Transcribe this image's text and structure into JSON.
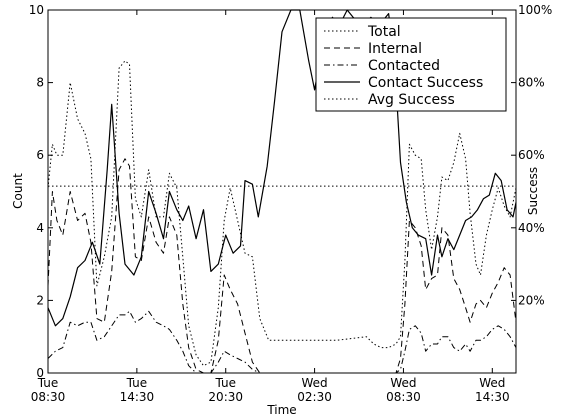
{
  "chart_data": {
    "type": "line",
    "xlabel": "Time",
    "ylabel_left": "Count",
    "ylabel_right": "Success",
    "ylim_left": [
      0,
      10
    ],
    "ylim_right": [
      0,
      100
    ],
    "xlim": [
      0,
      31.6
    ],
    "x_unit_note": "hours after Tue 08:30",
    "x_ticks": [
      {
        "x": 0,
        "line1": "Tue",
        "line2": "08:30"
      },
      {
        "x": 6,
        "line1": "Tue",
        "line2": "14:30"
      },
      {
        "x": 12,
        "line1": "Tue",
        "line2": "20:30"
      },
      {
        "x": 18,
        "line1": "Wed",
        "line2": "02:30"
      },
      {
        "x": 24,
        "line1": "Wed",
        "line2": "08:30"
      },
      {
        "x": 30,
        "line1": "Wed",
        "line2": "14:30"
      }
    ],
    "left_ticks": [
      "0",
      "2",
      "4",
      "6",
      "8",
      "10"
    ],
    "left_tick_values": [
      0,
      2,
      4,
      6,
      8,
      10
    ],
    "right_ticks": [
      "20%",
      "40%",
      "60%",
      "80%",
      "100%"
    ],
    "right_tick_values": [
      20,
      40,
      60,
      80,
      100
    ],
    "legend_position": "top-right",
    "legend": [
      {
        "name": "Total",
        "style": "dotted"
      },
      {
        "name": "Internal",
        "style": "dashed"
      },
      {
        "name": "Contacted",
        "style": "dashdot"
      },
      {
        "name": "Contact Success",
        "style": "solid"
      },
      {
        "name": "Avg Success",
        "style": "dotted"
      }
    ],
    "series": [
      {
        "name": "Total",
        "axis": "left",
        "style": "dotted",
        "points": [
          [
            0,
            5.1
          ],
          [
            0.3,
            6.3
          ],
          [
            0.6,
            6.0
          ],
          [
            1.0,
            6.0
          ],
          [
            1.5,
            8.0
          ],
          [
            2.0,
            7.0
          ],
          [
            2.5,
            6.6
          ],
          [
            2.9,
            5.9
          ],
          [
            3.3,
            2.4
          ],
          [
            3.8,
            3.2
          ],
          [
            4.3,
            4.3
          ],
          [
            4.8,
            8.4
          ],
          [
            5.2,
            8.6
          ],
          [
            5.5,
            8.5
          ],
          [
            5.9,
            4.8
          ],
          [
            6.3,
            4.3
          ],
          [
            6.8,
            5.6
          ],
          [
            7.3,
            4.3
          ],
          [
            7.8,
            4.3
          ],
          [
            8.2,
            5.5
          ],
          [
            8.7,
            5.1
          ],
          [
            9.1,
            3.2
          ],
          [
            9.5,
            1.3
          ],
          [
            10.0,
            0.5
          ],
          [
            10.5,
            0.2
          ],
          [
            11.0,
            0.3
          ],
          [
            11.5,
            1.8
          ],
          [
            11.9,
            4.2
          ],
          [
            12.3,
            5.1
          ],
          [
            12.8,
            4.2
          ],
          [
            13.3,
            3.3
          ],
          [
            13.8,
            3.2
          ],
          [
            14.3,
            1.5
          ],
          [
            14.9,
            0.9
          ],
          [
            15.5,
            0.9
          ],
          [
            16.5,
            0.9
          ],
          [
            17.5,
            0.9
          ],
          [
            18.5,
            0.9
          ],
          [
            19.5,
            0.9
          ],
          [
            20.5,
            0.95
          ],
          [
            21.5,
            1.0
          ],
          [
            22.0,
            0.8
          ],
          [
            22.5,
            0.7
          ],
          [
            23.0,
            0.7
          ],
          [
            23.5,
            0.8
          ],
          [
            23.8,
            1.0
          ],
          [
            24.1,
            3.1
          ],
          [
            24.4,
            6.3
          ],
          [
            24.8,
            6.0
          ],
          [
            25.2,
            5.9
          ],
          [
            25.5,
            4.5
          ],
          [
            25.9,
            3.4
          ],
          [
            26.3,
            4.3
          ],
          [
            26.6,
            5.4
          ],
          [
            27.0,
            5.3
          ],
          [
            27.4,
            5.8
          ],
          [
            27.8,
            6.6
          ],
          [
            28.2,
            5.9
          ],
          [
            28.5,
            4.4
          ],
          [
            28.9,
            3.0
          ],
          [
            29.2,
            2.7
          ],
          [
            29.6,
            3.8
          ],
          [
            30.0,
            4.5
          ],
          [
            30.4,
            5.1
          ],
          [
            30.8,
            4.6
          ],
          [
            31.2,
            4.3
          ],
          [
            31.6,
            5.1
          ]
        ]
      },
      {
        "name": "Internal",
        "axis": "left",
        "style": "dashed",
        "points": [
          [
            0,
            2.4
          ],
          [
            0.3,
            5.0
          ],
          [
            0.6,
            4.2
          ],
          [
            1.0,
            3.8
          ],
          [
            1.5,
            5.0
          ],
          [
            2.0,
            4.2
          ],
          [
            2.5,
            4.4
          ],
          [
            2.9,
            3.6
          ],
          [
            3.3,
            1.5
          ],
          [
            3.8,
            1.4
          ],
          [
            4.3,
            2.8
          ],
          [
            4.8,
            5.6
          ],
          [
            5.2,
            5.9
          ],
          [
            5.5,
            5.7
          ],
          [
            5.9,
            3.2
          ],
          [
            6.3,
            3.1
          ],
          [
            6.8,
            4.3
          ],
          [
            7.3,
            3.6
          ],
          [
            7.8,
            3.3
          ],
          [
            8.2,
            4.3
          ],
          [
            8.7,
            3.8
          ],
          [
            9.1,
            1.9
          ],
          [
            9.5,
            0.7
          ],
          [
            10.0,
            0.1
          ],
          [
            10.5,
            0.0
          ],
          [
            11.0,
            0.0
          ],
          [
            11.5,
            0.9
          ],
          [
            11.9,
            2.7
          ],
          [
            12.3,
            2.3
          ],
          [
            12.8,
            1.9
          ],
          [
            13.3,
            1.1
          ],
          [
            13.8,
            0.3
          ],
          [
            14.3,
            0.0
          ],
          [
            15.0,
            0.0
          ],
          [
            23.5,
            0.0
          ],
          [
            23.8,
            0.4
          ],
          [
            24.1,
            1.9
          ],
          [
            24.4,
            4.2
          ],
          [
            24.8,
            4.0
          ],
          [
            25.2,
            3.5
          ],
          [
            25.5,
            2.3
          ],
          [
            25.9,
            2.6
          ],
          [
            26.3,
            2.7
          ],
          [
            26.6,
            4.0
          ],
          [
            27.0,
            3.8
          ],
          [
            27.4,
            2.6
          ],
          [
            27.8,
            2.3
          ],
          [
            28.2,
            1.8
          ],
          [
            28.5,
            1.4
          ],
          [
            28.9,
            1.9
          ],
          [
            29.2,
            2.0
          ],
          [
            29.6,
            1.8
          ],
          [
            30.0,
            2.2
          ],
          [
            30.4,
            2.5
          ],
          [
            30.8,
            2.9
          ],
          [
            31.2,
            2.7
          ],
          [
            31.6,
            1.4
          ]
        ]
      },
      {
        "name": "Contacted",
        "axis": "left",
        "style": "dashdot",
        "points": [
          [
            0,
            0.4
          ],
          [
            0.5,
            0.6
          ],
          [
            1.0,
            0.7
          ],
          [
            1.5,
            1.4
          ],
          [
            2.0,
            1.3
          ],
          [
            2.5,
            1.4
          ],
          [
            2.9,
            1.4
          ],
          [
            3.3,
            0.9
          ],
          [
            3.8,
            1.0
          ],
          [
            4.3,
            1.3
          ],
          [
            4.8,
            1.6
          ],
          [
            5.2,
            1.6
          ],
          [
            5.5,
            1.7
          ],
          [
            5.9,
            1.4
          ],
          [
            6.3,
            1.5
          ],
          [
            6.8,
            1.7
          ],
          [
            7.3,
            1.4
          ],
          [
            7.8,
            1.3
          ],
          [
            8.2,
            1.2
          ],
          [
            8.7,
            0.9
          ],
          [
            9.1,
            0.6
          ],
          [
            9.5,
            0.2
          ],
          [
            10.0,
            0.0
          ],
          [
            11.0,
            0.0
          ],
          [
            11.5,
            0.3
          ],
          [
            11.9,
            0.6
          ],
          [
            12.3,
            0.5
          ],
          [
            12.8,
            0.4
          ],
          [
            13.3,
            0.3
          ],
          [
            13.8,
            0.1
          ],
          [
            14.3,
            0.0
          ],
          [
            23.5,
            0.0
          ],
          [
            23.8,
            0.1
          ],
          [
            24.1,
            0.6
          ],
          [
            24.4,
            1.2
          ],
          [
            24.8,
            1.3
          ],
          [
            25.2,
            1.1
          ],
          [
            25.5,
            0.6
          ],
          [
            25.9,
            0.8
          ],
          [
            26.3,
            0.8
          ],
          [
            26.6,
            1.0
          ],
          [
            27.0,
            1.0
          ],
          [
            27.4,
            0.7
          ],
          [
            27.8,
            0.6
          ],
          [
            28.2,
            0.8
          ],
          [
            28.5,
            0.6
          ],
          [
            28.9,
            0.9
          ],
          [
            29.2,
            0.9
          ],
          [
            29.6,
            1.0
          ],
          [
            30.0,
            1.2
          ],
          [
            30.4,
            1.3
          ],
          [
            30.8,
            1.2
          ],
          [
            31.2,
            1.0
          ],
          [
            31.6,
            0.7
          ]
        ]
      },
      {
        "name": "Contact Success",
        "axis": "right",
        "style": "solid",
        "points": [
          [
            0,
            18
          ],
          [
            0.5,
            13
          ],
          [
            1.0,
            15
          ],
          [
            1.5,
            21
          ],
          [
            2.0,
            29
          ],
          [
            2.5,
            31
          ],
          [
            3.0,
            36
          ],
          [
            3.5,
            30
          ],
          [
            4.0,
            56
          ],
          [
            4.3,
            74
          ],
          [
            4.8,
            44
          ],
          [
            5.2,
            30
          ],
          [
            5.8,
            27
          ],
          [
            6.3,
            32
          ],
          [
            6.8,
            50
          ],
          [
            7.3,
            44
          ],
          [
            7.8,
            37
          ],
          [
            8.2,
            50
          ],
          [
            8.7,
            45
          ],
          [
            9.1,
            42
          ],
          [
            9.5,
            46
          ],
          [
            10.0,
            37
          ],
          [
            10.5,
            45
          ],
          [
            11.0,
            28
          ],
          [
            11.5,
            30
          ],
          [
            12.0,
            38
          ],
          [
            12.5,
            33
          ],
          [
            13.0,
            35
          ],
          [
            13.3,
            53
          ],
          [
            13.8,
            52
          ],
          [
            14.2,
            43
          ],
          [
            14.8,
            57
          ],
          [
            15.3,
            75
          ],
          [
            15.8,
            94
          ],
          [
            16.4,
            100
          ],
          [
            17.0,
            100
          ],
          [
            17.6,
            86
          ],
          [
            18.0,
            78
          ],
          [
            18.6,
            92
          ],
          [
            19.2,
            98
          ],
          [
            19.7,
            96
          ],
          [
            20.2,
            100
          ],
          [
            20.6,
            98
          ],
          [
            21.2,
            96
          ],
          [
            21.8,
            98
          ],
          [
            22.4,
            96
          ],
          [
            23.0,
            99
          ],
          [
            23.4,
            86
          ],
          [
            23.8,
            58
          ],
          [
            24.2,
            47
          ],
          [
            24.6,
            40
          ],
          [
            25.0,
            38
          ],
          [
            25.5,
            37
          ],
          [
            25.9,
            27
          ],
          [
            26.3,
            38
          ],
          [
            26.6,
            32
          ],
          [
            27.0,
            37
          ],
          [
            27.4,
            34
          ],
          [
            27.8,
            38
          ],
          [
            28.2,
            42
          ],
          [
            28.6,
            43
          ],
          [
            29.0,
            45
          ],
          [
            29.4,
            48
          ],
          [
            29.8,
            49
          ],
          [
            30.2,
            55
          ],
          [
            30.6,
            53
          ],
          [
            31.0,
            45
          ],
          [
            31.4,
            43
          ],
          [
            31.6,
            47
          ]
        ]
      },
      {
        "name": "Avg Success",
        "axis": "right",
        "style": "dotted",
        "points": [
          [
            0,
            51.5
          ],
          [
            31.6,
            51.5
          ]
        ]
      }
    ]
  }
}
